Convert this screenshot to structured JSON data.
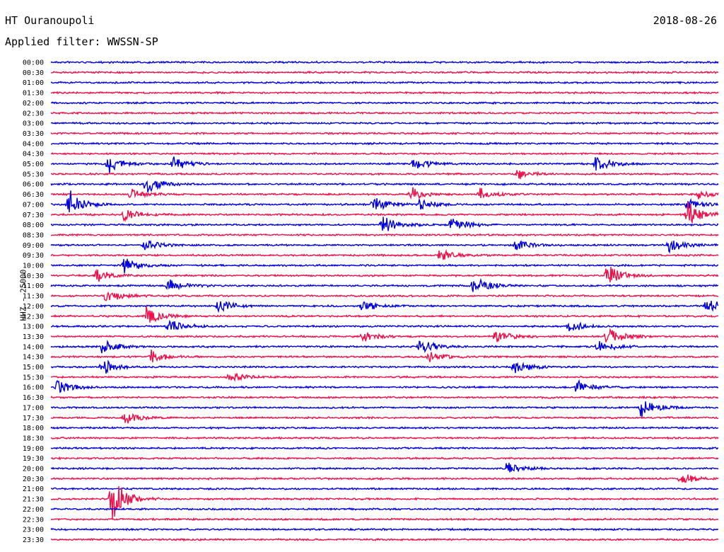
{
  "header": {
    "station": "HT Ouranoupoli",
    "date": "2018-08-26",
    "filter": "Applied filter: WWSSN-SP",
    "channel": "HHZ - 25000"
  },
  "colors": {
    "blue": "#0000e0",
    "red": "#f0104a"
  },
  "chart_data": {
    "type": "line",
    "x_unit": "minutes",
    "row_span_minutes": 30,
    "row_labels": [
      "00:00",
      "00:30",
      "01:00",
      "01:30",
      "02:00",
      "02:30",
      "03:00",
      "03:30",
      "04:00",
      "04:30",
      "05:00",
      "05:30",
      "06:00",
      "06:30",
      "07:00",
      "07:30",
      "08:00",
      "08:30",
      "09:00",
      "09:30",
      "10:00",
      "10:30",
      "11:00",
      "11:30",
      "12:00",
      "12:30",
      "13:00",
      "13:30",
      "14:00",
      "14:30",
      "15:00",
      "15:30",
      "16:00",
      "16:30",
      "17:00",
      "17:30",
      "18:00",
      "18:30",
      "19:00",
      "19:30",
      "20:00",
      "20:30",
      "21:00",
      "21:30",
      "22:00",
      "22:30",
      "23:00",
      "23:30"
    ],
    "events": [
      {
        "row": 10,
        "t": 2.6,
        "amp": 16
      },
      {
        "row": 10,
        "t": 5.5,
        "amp": 10
      },
      {
        "row": 10,
        "t": 16.3,
        "amp": 12
      },
      {
        "row": 10,
        "t": 24.5,
        "amp": 14
      },
      {
        "row": 11,
        "t": 21.0,
        "amp": 8
      },
      {
        "row": 12,
        "t": 4.3,
        "amp": 18
      },
      {
        "row": 13,
        "t": 3.6,
        "amp": 10
      },
      {
        "row": 13,
        "t": 16.2,
        "amp": 10
      },
      {
        "row": 13,
        "t": 19.3,
        "amp": 10
      },
      {
        "row": 13,
        "t": 29.1,
        "amp": 8
      },
      {
        "row": 14,
        "t": 0.8,
        "amp": 22
      },
      {
        "row": 14,
        "t": 14.5,
        "amp": 14
      },
      {
        "row": 14,
        "t": 16.6,
        "amp": 10
      },
      {
        "row": 14,
        "t": 28.6,
        "amp": 10
      },
      {
        "row": 15,
        "t": 3.3,
        "amp": 12
      },
      {
        "row": 15,
        "t": 28.6,
        "amp": 22
      },
      {
        "row": 16,
        "t": 14.9,
        "amp": 18
      },
      {
        "row": 16,
        "t": 18.0,
        "amp": 12
      },
      {
        "row": 18,
        "t": 4.2,
        "amp": 10
      },
      {
        "row": 18,
        "t": 20.9,
        "amp": 10
      },
      {
        "row": 18,
        "t": 27.8,
        "amp": 12
      },
      {
        "row": 19,
        "t": 17.5,
        "amp": 10
      },
      {
        "row": 20,
        "t": 3.3,
        "amp": 12
      },
      {
        "row": 21,
        "t": 2.0,
        "amp": 12
      },
      {
        "row": 21,
        "t": 25.0,
        "amp": 18
      },
      {
        "row": 22,
        "t": 5.3,
        "amp": 12
      },
      {
        "row": 22,
        "t": 19.0,
        "amp": 16
      },
      {
        "row": 23,
        "t": 2.5,
        "amp": 12
      },
      {
        "row": 24,
        "t": 7.5,
        "amp": 12
      },
      {
        "row": 24,
        "t": 14.0,
        "amp": 10
      },
      {
        "row": 24,
        "t": 29.5,
        "amp": 14
      },
      {
        "row": 25,
        "t": 4.3,
        "amp": 18
      },
      {
        "row": 26,
        "t": 5.3,
        "amp": 12
      },
      {
        "row": 26,
        "t": 23.3,
        "amp": 10
      },
      {
        "row": 27,
        "t": 14.0,
        "amp": 10
      },
      {
        "row": 27,
        "t": 20.0,
        "amp": 12
      },
      {
        "row": 27,
        "t": 25.0,
        "amp": 16
      },
      {
        "row": 28,
        "t": 2.3,
        "amp": 14
      },
      {
        "row": 28,
        "t": 16.6,
        "amp": 14
      },
      {
        "row": 28,
        "t": 24.6,
        "amp": 12
      },
      {
        "row": 29,
        "t": 4.5,
        "amp": 10
      },
      {
        "row": 29,
        "t": 17.0,
        "amp": 10
      },
      {
        "row": 30,
        "t": 2.3,
        "amp": 12
      },
      {
        "row": 30,
        "t": 20.8,
        "amp": 12
      },
      {
        "row": 31,
        "t": 8.0,
        "amp": 10
      },
      {
        "row": 32,
        "t": 0.3,
        "amp": 12
      },
      {
        "row": 32,
        "t": 23.6,
        "amp": 12
      },
      {
        "row": 34,
        "t": 26.5,
        "amp": 16
      },
      {
        "row": 35,
        "t": 3.3,
        "amp": 10
      },
      {
        "row": 40,
        "t": 20.5,
        "amp": 10
      },
      {
        "row": 41,
        "t": 28.3,
        "amp": 10
      },
      {
        "row": 43,
        "t": 2.7,
        "amp": 38
      }
    ]
  }
}
